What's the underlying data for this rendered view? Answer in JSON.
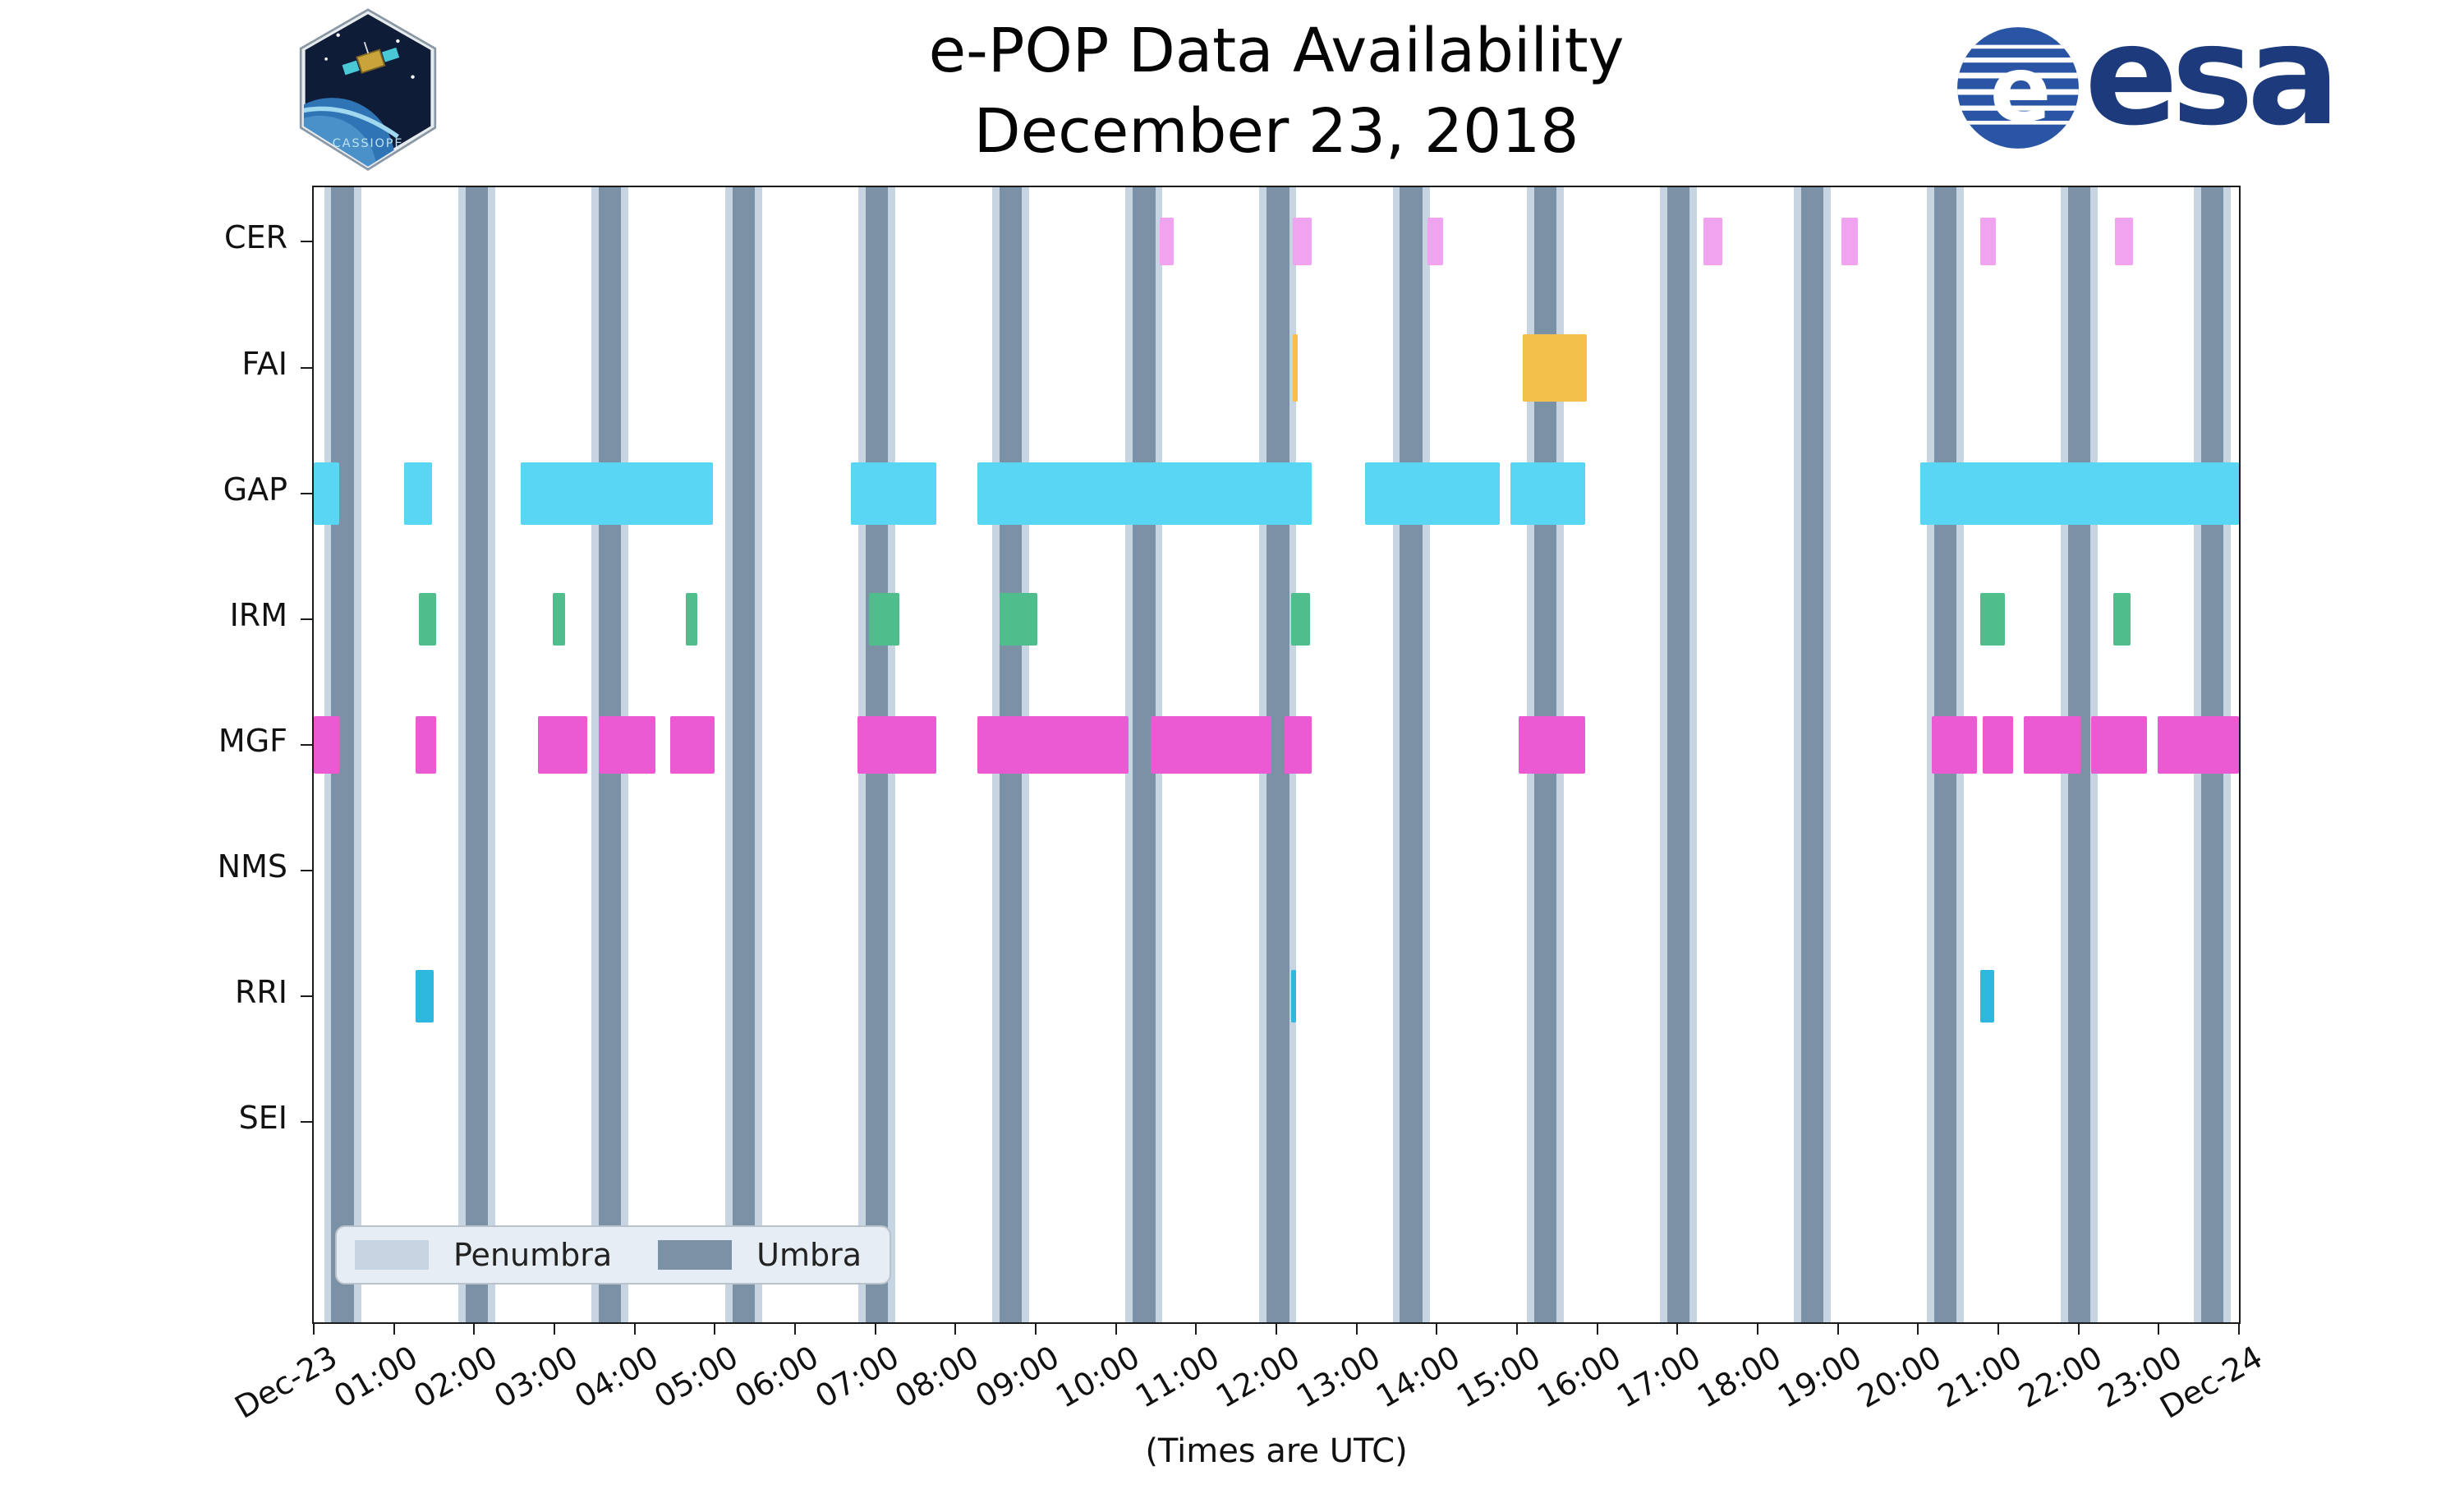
{
  "header": {
    "title": "e-POP Data Availability",
    "subtitle": "December 23, 2018",
    "cassiope_patch_label": "CASSIOPE",
    "esa_wordmark": "esa",
    "esa_circle_letter": "e"
  },
  "chart_data": {
    "type": "timeline",
    "title": "e-POP Data Availability",
    "subtitle": "December 23, 2018",
    "xlabel": "(Times are UTC)",
    "x_range_hours": [
      0,
      24
    ],
    "x_tick_hours": [
      0,
      1,
      2,
      3,
      4,
      5,
      6,
      7,
      8,
      9,
      10,
      11,
      12,
      13,
      14,
      15,
      16,
      17,
      18,
      19,
      20,
      21,
      22,
      23,
      24
    ],
    "x_tick_labels": [
      "Dec-23",
      "01:00",
      "02:00",
      "03:00",
      "04:00",
      "05:00",
      "06:00",
      "07:00",
      "08:00",
      "09:00",
      "10:00",
      "11:00",
      "12:00",
      "13:00",
      "14:00",
      "15:00",
      "16:00",
      "17:00",
      "18:00",
      "19:00",
      "20:00",
      "21:00",
      "22:00",
      "23:00",
      "Dec-24"
    ],
    "rows": [
      {
        "name": "CER",
        "color": "#f0a3ef",
        "intervals": [
          [
            10.55,
            10.72
          ],
          [
            12.2,
            12.44
          ],
          [
            13.88,
            14.08
          ],
          [
            17.32,
            17.56
          ],
          [
            19.04,
            19.25
          ],
          [
            20.77,
            20.97
          ],
          [
            22.45,
            22.68
          ]
        ]
      },
      {
        "name": "FAI",
        "color": "#f3c04a",
        "intervals": [
          [
            12.2,
            12.27
          ],
          [
            15.07,
            15.87
          ]
        ]
      },
      {
        "name": "GAP",
        "color": "#58d6f4",
        "intervals": [
          [
            0.0,
            0.32
          ],
          [
            1.13,
            1.47
          ],
          [
            2.58,
            4.98
          ],
          [
            6.7,
            7.76
          ],
          [
            8.27,
            12.44
          ],
          [
            13.11,
            14.78
          ],
          [
            14.92,
            15.85
          ],
          [
            20.03,
            24.0
          ]
        ]
      },
      {
        "name": "IRM",
        "color": "#4fbd8c",
        "intervals": [
          [
            1.31,
            1.53
          ],
          [
            2.98,
            3.13
          ],
          [
            4.64,
            4.78
          ],
          [
            6.92,
            7.3
          ],
          [
            8.55,
            9.02
          ],
          [
            12.18,
            12.42
          ],
          [
            20.77,
            21.08
          ],
          [
            22.43,
            22.65
          ]
        ]
      },
      {
        "name": "MGF",
        "color": "#eb59d3",
        "intervals": [
          [
            0.0,
            0.32
          ],
          [
            1.27,
            1.53
          ],
          [
            2.8,
            3.41
          ],
          [
            3.55,
            4.26
          ],
          [
            4.44,
            5.0
          ],
          [
            6.78,
            7.76
          ],
          [
            8.27,
            10.16
          ],
          [
            10.43,
            11.94
          ],
          [
            12.1,
            12.44
          ],
          [
            15.02,
            15.85
          ],
          [
            20.17,
            20.73
          ],
          [
            20.81,
            21.18
          ],
          [
            21.32,
            22.02
          ],
          [
            22.16,
            22.85
          ],
          [
            22.99,
            24.0
          ]
        ]
      },
      {
        "name": "NMS",
        "color": "#cccccc",
        "intervals": []
      },
      {
        "name": "RRI",
        "color": "#2eb8e0",
        "intervals": [
          [
            1.27,
            1.49
          ],
          [
            12.18,
            12.25
          ],
          [
            20.77,
            20.95
          ]
        ]
      },
      {
        "name": "SEI",
        "color": "#cccccc",
        "intervals": []
      }
    ],
    "eclipse": {
      "umbra_color": "#7b91a6",
      "penumbra_color": "#c7d4e2",
      "umbra_width_hours": 0.28,
      "penumbra_width_hours": 0.46,
      "umbra_centers_hours": [
        0.36,
        2.03,
        3.69,
        5.36,
        7.02,
        8.69,
        10.35,
        12.02,
        13.68,
        15.35,
        17.01,
        18.68,
        20.34,
        22.01,
        23.67
      ]
    },
    "legend": [
      {
        "label": "Penumbra",
        "color": "#c7d4e2"
      },
      {
        "label": "Umbra",
        "color": "#7b91a6"
      }
    ]
  }
}
